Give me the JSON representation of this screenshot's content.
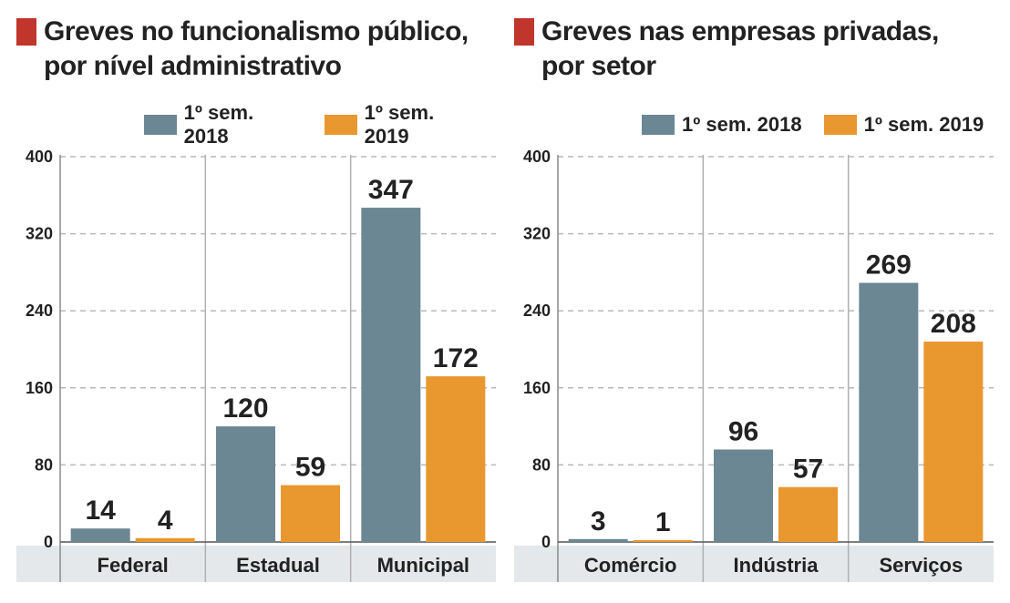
{
  "colors": {
    "series1": "#6b8793",
    "series2": "#e9972f",
    "accent": "#c0362c",
    "band": "#e4e8ea",
    "grid": "#b9b9b9"
  },
  "chart_data": [
    {
      "type": "bar",
      "title_line1": "Greves no funcionalismo público,",
      "title_line2": "por nível administrativo",
      "categories": [
        "Federal",
        "Estadual",
        "Municipal"
      ],
      "series": [
        {
          "name": "1º sem. 2018",
          "values": [
            14,
            120,
            347
          ]
        },
        {
          "name": "1º sem. 2019",
          "values": [
            4,
            59,
            172
          ]
        }
      ],
      "ylim": [
        0,
        400
      ],
      "yticks": [
        0,
        80,
        160,
        240,
        320,
        400
      ],
      "grid": true,
      "legend": "top-right"
    },
    {
      "type": "bar",
      "title_line1": "Greves nas empresas privadas,",
      "title_line2": "por setor",
      "categories": [
        "Comércio",
        "Indústria",
        "Serviços"
      ],
      "series": [
        {
          "name": "1º sem. 2018",
          "values": [
            3,
            96,
            269
          ]
        },
        {
          "name": "1º sem. 2019",
          "values": [
            1,
            57,
            208
          ]
        }
      ],
      "ylim": [
        0,
        400
      ],
      "yticks": [
        0,
        80,
        160,
        240,
        320,
        400
      ],
      "grid": true,
      "legend": "top-right"
    }
  ]
}
